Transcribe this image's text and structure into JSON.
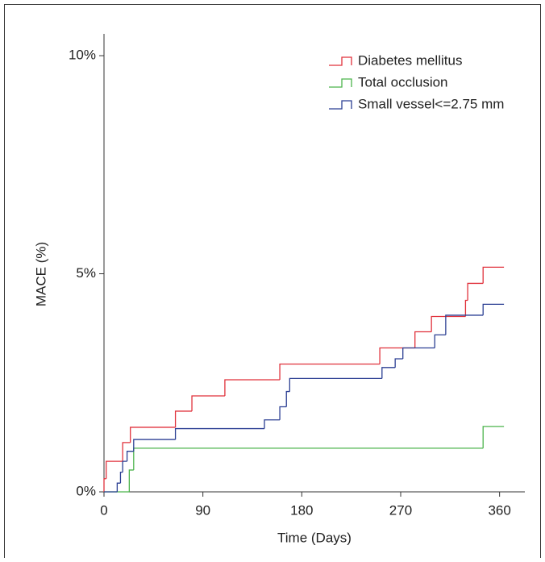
{
  "chart_data": {
    "type": "step",
    "xlabel": "Time (Days)",
    "ylabel": "MACE (%)",
    "xlim": [
      0,
      383
    ],
    "ylim": [
      0,
      10.5
    ],
    "xticks": [
      0,
      90,
      180,
      270,
      360
    ],
    "yticks": [
      {
        "value": 0,
        "label": "0%"
      },
      {
        "value": 5,
        "label": "5%"
      },
      {
        "value": 10,
        "label": "10%"
      }
    ],
    "legend": "top-right",
    "series": [
      {
        "name": "Diabetes mellitus",
        "color": "#e0313b",
        "x": [
          0,
          2,
          17,
          24,
          65,
          80,
          110,
          160,
          251,
          283,
          298,
          329,
          331,
          345,
          364
        ],
        "values": [
          0.3,
          0.7,
          1.13,
          1.48,
          1.85,
          2.2,
          2.57,
          2.93,
          3.3,
          3.67,
          4.02,
          4.39,
          4.78,
          5.15,
          5.15
        ]
      },
      {
        "name": "Total occlusion",
        "color": "#4bb34b",
        "x": [
          0,
          23,
          27,
          345,
          364
        ],
        "values": [
          0,
          0.5,
          1.0,
          1.5,
          1.5
        ]
      },
      {
        "name": "Small vessel<=2.75 mm",
        "color": "#2b3f93",
        "x": [
          0,
          12,
          15,
          17,
          21,
          27,
          65,
          146,
          160,
          166,
          169,
          253,
          265,
          272,
          301,
          311,
          345,
          364
        ],
        "values": [
          0,
          0.2,
          0.45,
          0.7,
          0.93,
          1.2,
          1.45,
          1.65,
          1.95,
          2.3,
          2.6,
          2.85,
          3.05,
          3.3,
          3.6,
          4.05,
          4.3,
          4.3
        ]
      }
    ]
  }
}
